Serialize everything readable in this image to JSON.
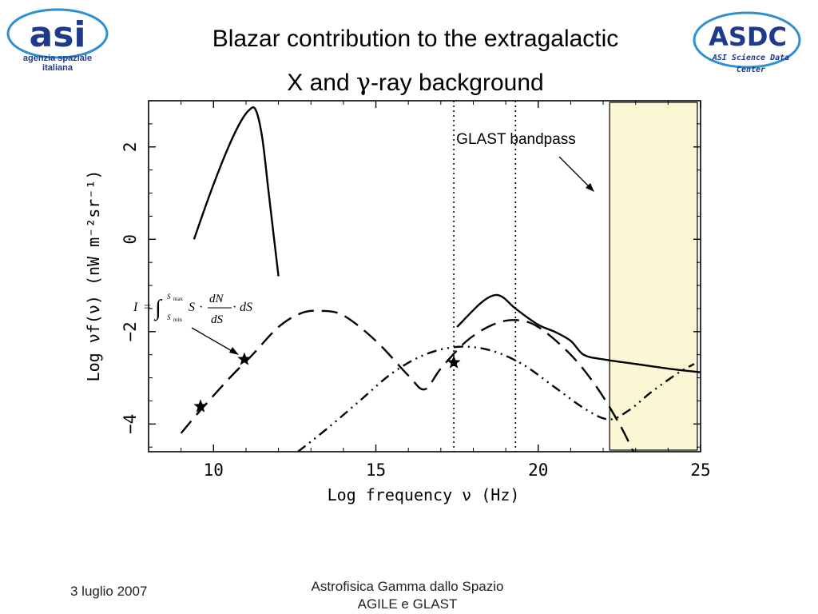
{
  "slide": {
    "title_line1": "Blazar contribution to the extragalactic",
    "title_line2_pre": "X and ",
    "title_line2_sym": "γ",
    "title_line2_post": "-ray background",
    "date": "3 luglio 2007",
    "footer_line1": "Astrofisica Gamma dallo Spazio",
    "footer_line2": "AGILE e GLAST"
  },
  "logos": {
    "asi": {
      "letters": "asi",
      "line1": "agenzia spaziale",
      "line2": "italiana",
      "color": "#1f3a8a",
      "ring_color": "#2f8fd0"
    },
    "asdc": {
      "letters": "ASDC",
      "line1": "ASI Science Data",
      "line2": "Center",
      "color": "#1f3a8a",
      "ring_color": "#2f8fd0"
    }
  },
  "chart_data": {
    "type": "line",
    "xlabel": "Log frequency ν (Hz)",
    "ylabel": "Log νf(ν) (nW m⁻²sr⁻¹)",
    "xlim": [
      8,
      25
    ],
    "ylim": [
      -4.6,
      3.0
    ],
    "xticks": [
      10,
      15,
      20,
      25
    ],
    "yticks": [
      -4,
      -2,
      0,
      2
    ],
    "grid": false,
    "series": [
      {
        "style": "solid",
        "x": [
          9.4,
          9.9,
          10.4,
          10.8,
          11.1,
          11.3,
          11.5,
          11.7,
          11.9,
          12.0
        ],
        "y": [
          0.0,
          1.0,
          1.9,
          2.5,
          2.8,
          2.8,
          2.2,
          1.0,
          -0.2,
          -0.8
        ]
      },
      {
        "style": "dashed",
        "x": [
          9.0,
          9.6,
          10.5,
          11.2,
          12.0,
          12.7,
          13.3,
          14.0,
          15.0,
          16.0,
          16.5,
          17.0,
          17.8,
          18.6,
          19.3,
          20.0,
          21.0,
          21.8,
          22.5,
          23.0
        ],
        "y": [
          -4.2,
          -3.7,
          -3.0,
          -2.5,
          -1.9,
          -1.6,
          -1.55,
          -1.65,
          -2.2,
          -2.95,
          -3.25,
          -2.8,
          -2.2,
          -1.85,
          -1.75,
          -1.9,
          -2.5,
          -3.2,
          -4.0,
          -4.7
        ]
      },
      {
        "style": "dashdot",
        "x": [
          12.6,
          13.5,
          14.5,
          15.5,
          16.5,
          17.5,
          18.5,
          19.5,
          20.5,
          21.5,
          22.2,
          22.8,
          23.5,
          24.3,
          24.8
        ],
        "y": [
          -4.6,
          -4.1,
          -3.5,
          -2.9,
          -2.5,
          -2.33,
          -2.4,
          -2.7,
          -3.2,
          -3.7,
          -3.9,
          -3.7,
          -3.3,
          -2.9,
          -2.7
        ]
      },
      {
        "style": "solid",
        "x": [
          17.5,
          18.2,
          18.6,
          18.9,
          19.3,
          20.0,
          20.5,
          21.0,
          21.4,
          22.0,
          23.0,
          24.0,
          25.0
        ],
        "y": [
          -1.9,
          -1.4,
          -1.22,
          -1.25,
          -1.5,
          -1.85,
          -2.0,
          -2.2,
          -2.5,
          -2.6,
          -2.7,
          -2.8,
          -2.88
        ]
      }
    ],
    "stars": [
      {
        "x": 9.6,
        "y": -3.62
      },
      {
        "x": 10.95,
        "y": -2.6
      },
      {
        "x": 17.4,
        "y": -2.67
      }
    ],
    "vlines": [
      {
        "x": 17.4
      },
      {
        "x": 19.3
      }
    ],
    "band": {
      "x": [
        22.2,
        24.9
      ],
      "color": "#fbf7d4"
    },
    "annotations": [
      {
        "text": "GLAST bandpass"
      },
      {
        "formula": "I = ∫ S·dN/dS·dS",
        "lower": "S min",
        "upper": "S max"
      }
    ]
  }
}
